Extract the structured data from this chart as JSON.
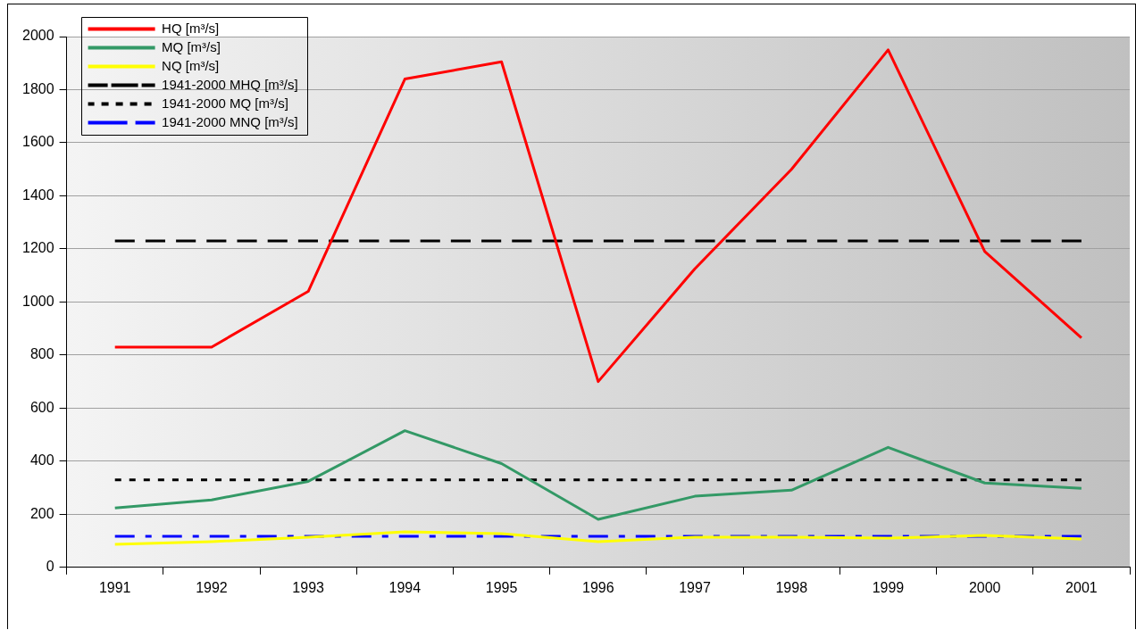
{
  "chart_data": {
    "type": "line",
    "categories": [
      "1991",
      "1992",
      "1993",
      "1994",
      "1995",
      "1996",
      "1997",
      "1998",
      "1999",
      "2000",
      "2001"
    ],
    "series": [
      {
        "name": "HQ [m³/s]",
        "color": "#ff0000",
        "line_style": "solid",
        "values": [
          830,
          830,
          1040,
          1840,
          1905,
          700,
          1125,
          1500,
          1950,
          1190,
          865
        ]
      },
      {
        "name": "MQ [m³/s]",
        "color": "#339966",
        "line_style": "solid",
        "values": [
          224,
          254,
          324,
          515,
          391,
          181,
          268,
          291,
          452,
          318,
          298
        ]
      },
      {
        "name": "NQ [m³/s]",
        "color": "#ffff00",
        "line_style": "solid",
        "values": [
          87,
          97,
          114,
          134,
          127,
          97,
          114,
          114,
          110,
          120,
          107
        ]
      },
      {
        "name": "1941-2000 MHQ [m³/s]",
        "color": "#000000",
        "line_style": "dashed",
        "values": [
          1230,
          1230,
          1230,
          1230,
          1230,
          1230,
          1230,
          1230,
          1230,
          1230,
          1230
        ]
      },
      {
        "name": "1941-2000 MQ [m³/s]",
        "color": "#000000",
        "line_style": "dotted",
        "values": [
          330,
          330,
          330,
          330,
          330,
          330,
          330,
          330,
          330,
          330,
          330
        ]
      },
      {
        "name": "1941-2000 MNQ [m³/s]",
        "color": "#0000ff",
        "line_style": "dashdot",
        "values": [
          117,
          117,
          117,
          117,
          117,
          117,
          117,
          117,
          117,
          117,
          117
        ]
      }
    ],
    "ylim": [
      0,
      2000
    ],
    "yticks": [
      0,
      200,
      400,
      600,
      800,
      1000,
      1200,
      1400,
      1600,
      1800,
      2000
    ],
    "grid": "y",
    "legend": "top left",
    "marker": "none"
  }
}
